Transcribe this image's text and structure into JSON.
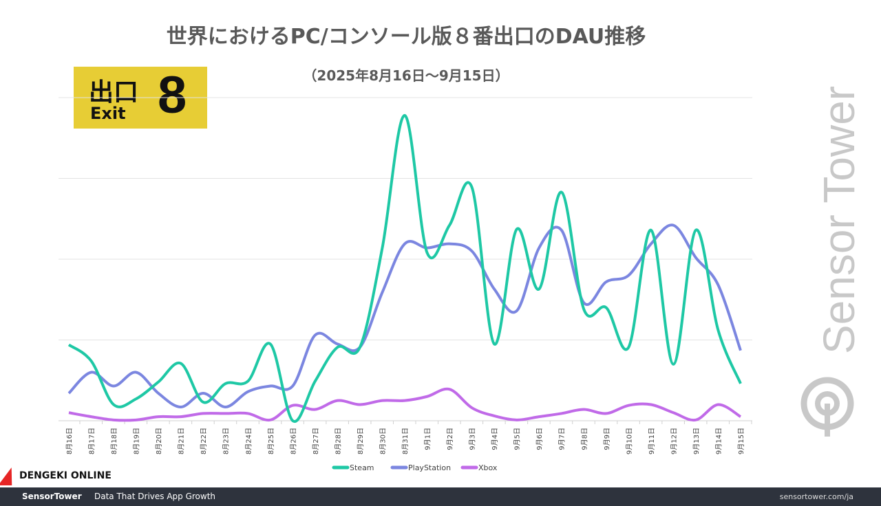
{
  "chart_data": {
    "type": "line",
    "title": "世界におけるPC/コンソール版８番出口のDAU推移",
    "subtitle": "（2025年8月16日～9月15日）",
    "xlabel": "",
    "ylabel": "",
    "ylim": [
      0,
      4
    ],
    "y_units": "relative (gridline intervals; no y-axis labels shown)",
    "grid": true,
    "legend_position": "bottom",
    "categories": [
      "8月16日",
      "8月17日",
      "8月18日",
      "8月19日",
      "8月20日",
      "8月21日",
      "8月22日",
      "8月23日",
      "8月24日",
      "8月25日",
      "8月26日",
      "8月27日",
      "8月28日",
      "8月29日",
      "8月30日",
      "8月31日",
      "9月1日",
      "9月2日",
      "9月3日",
      "9月4日",
      "9月5日",
      "9月6日",
      "9月7日",
      "9月8日",
      "9月9日",
      "9月10日",
      "9月11日",
      "9月12日",
      "9月13日",
      "9月14日",
      "9月15日"
    ],
    "series": [
      {
        "name": "Steam",
        "color": "#1ec8a5",
        "values": [
          0.94,
          0.74,
          0.2,
          0.27,
          0.48,
          0.71,
          0.23,
          0.46,
          0.49,
          0.95,
          0.0,
          0.49,
          0.91,
          0.91,
          2.14,
          3.78,
          2.08,
          2.42,
          2.89,
          0.95,
          2.37,
          1.63,
          2.83,
          1.38,
          1.4,
          0.91,
          2.36,
          0.7,
          2.36,
          1.12,
          0.46
        ]
      },
      {
        "name": "PlayStation",
        "color": "#7b86e0",
        "values": [
          0.34,
          0.6,
          0.43,
          0.6,
          0.34,
          0.17,
          0.34,
          0.17,
          0.36,
          0.43,
          0.43,
          1.06,
          0.95,
          0.91,
          1.59,
          2.19,
          2.14,
          2.19,
          2.1,
          1.63,
          1.36,
          2.14,
          2.36,
          1.46,
          1.72,
          1.8,
          2.19,
          2.42,
          2.02,
          1.68,
          0.87
        ]
      },
      {
        "name": "Xbox",
        "color": "#c06ae8",
        "values": [
          0.1,
          0.05,
          0.01,
          0.01,
          0.05,
          0.05,
          0.09,
          0.09,
          0.09,
          0.01,
          0.19,
          0.14,
          0.25,
          0.2,
          0.25,
          0.25,
          0.3,
          0.39,
          0.16,
          0.06,
          0.01,
          0.05,
          0.09,
          0.14,
          0.09,
          0.19,
          0.2,
          0.1,
          0.01,
          0.2,
          0.05
        ]
      }
    ]
  },
  "logo": {
    "jp": "出口",
    "en": "Exit",
    "num": "8"
  },
  "watermark": "Sensor Tower",
  "footer": {
    "brand": "SensorTower",
    "tagline": "Data That Drives App Growth",
    "url": "sensortower.com/ja"
  },
  "overlay_logo": "DENGEKI ONLINE"
}
